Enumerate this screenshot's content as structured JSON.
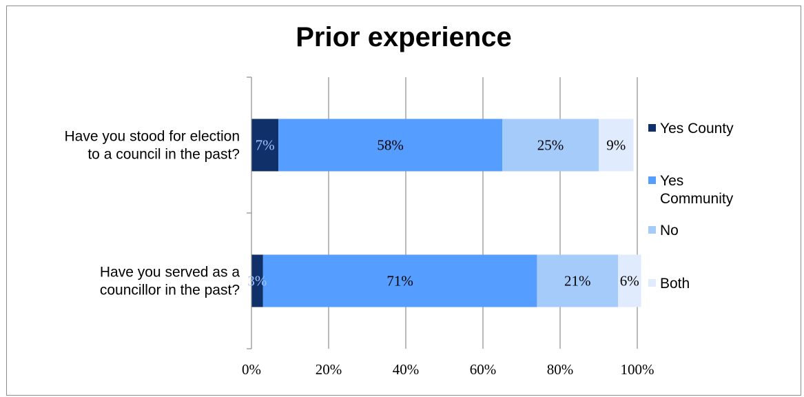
{
  "chart_data": {
    "type": "bar",
    "orientation": "horizontal",
    "stacked": "percent",
    "title": "Prior experience",
    "categories": [
      [
        "Have you stood for election",
        "to a council in the past?"
      ],
      [
        "Have you served as a",
        "councillor in the past?"
      ]
    ],
    "series": [
      {
        "name": "Yes County",
        "values": [
          7,
          3
        ],
        "labels": [
          "7%",
          "3%"
        ],
        "color": "#10306a",
        "label_color": "#9fc4ff"
      },
      {
        "name": "Yes Community",
        "values": [
          58,
          71
        ],
        "labels": [
          "58%",
          "71%"
        ],
        "color": "#559dff",
        "label_color": "#000000"
      },
      {
        "name": "No",
        "values": [
          25,
          21
        ],
        "labels": [
          "25%",
          "21%"
        ],
        "color": "#a5cbfb",
        "label_color": "#000000"
      },
      {
        "name": "Both",
        "values": [
          9,
          6
        ],
        "labels": [
          "9%",
          "6%"
        ],
        "color": "#e0ecfd",
        "label_color": "#000000"
      }
    ],
    "xlim": [
      0,
      100
    ],
    "xticks": [
      "0%",
      "20%",
      "40%",
      "60%",
      "80%",
      "100%"
    ],
    "grid": true,
    "legend": "right"
  }
}
